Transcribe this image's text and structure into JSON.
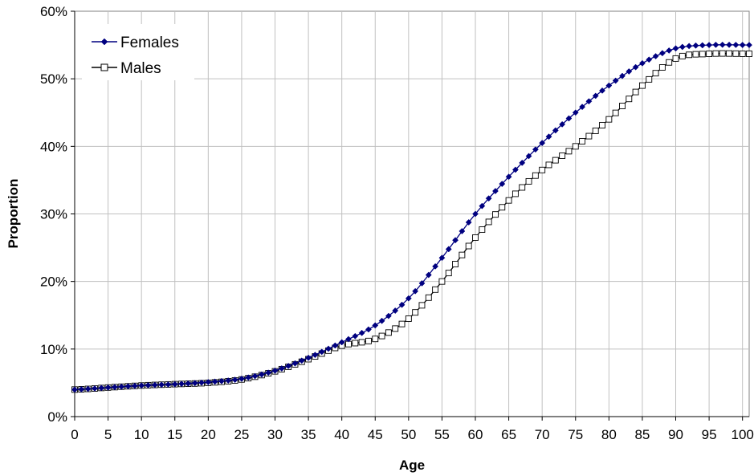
{
  "chart_data": {
    "type": "line",
    "xlabel": "Age",
    "ylabel": "Proportion",
    "xlim": [
      0,
      101
    ],
    "ylim": [
      0,
      60
    ],
    "x_ticks": [
      0,
      5,
      10,
      15,
      20,
      25,
      30,
      35,
      40,
      45,
      50,
      55,
      60,
      65,
      70,
      75,
      80,
      85,
      90,
      95,
      100
    ],
    "y_ticks": [
      0,
      10,
      20,
      30,
      40,
      50,
      60
    ],
    "y_tick_labels": [
      "0%",
      "10%",
      "20%",
      "30%",
      "40%",
      "50%",
      "60%"
    ],
    "x_tick_labels": [
      "0",
      "5",
      "10",
      "15",
      "20",
      "25",
      "30",
      "35",
      "40",
      "45",
      "50",
      "55",
      "60",
      "65",
      "70",
      "75",
      "80",
      "85",
      "90",
      "95",
      "100"
    ],
    "grid": true,
    "legend_position": "top-left",
    "x": [
      0,
      5,
      10,
      15,
      20,
      25,
      30,
      35,
      40,
      45,
      50,
      55,
      60,
      65,
      70,
      75,
      80,
      85,
      90,
      95,
      101
    ],
    "series": [
      {
        "name": "Females",
        "marker": "diamond",
        "color": "#000080",
        "values": [
          4.0,
          4.3,
          4.6,
          4.8,
          5.1,
          5.6,
          6.8,
          8.7,
          11.0,
          13.5,
          17.5,
          23.5,
          30.0,
          35.5,
          40.5,
          45.0,
          49.0,
          52.3,
          54.5,
          55.0,
          55.0
        ]
      },
      {
        "name": "Males",
        "marker": "square",
        "color": "#000000",
        "values": [
          4.0,
          4.3,
          4.6,
          4.8,
          5.0,
          5.5,
          6.7,
          8.5,
          10.5,
          11.5,
          14.5,
          20.0,
          26.5,
          32.0,
          36.5,
          40.0,
          44.0,
          49.0,
          53.0,
          53.7,
          53.7
        ]
      }
    ]
  }
}
